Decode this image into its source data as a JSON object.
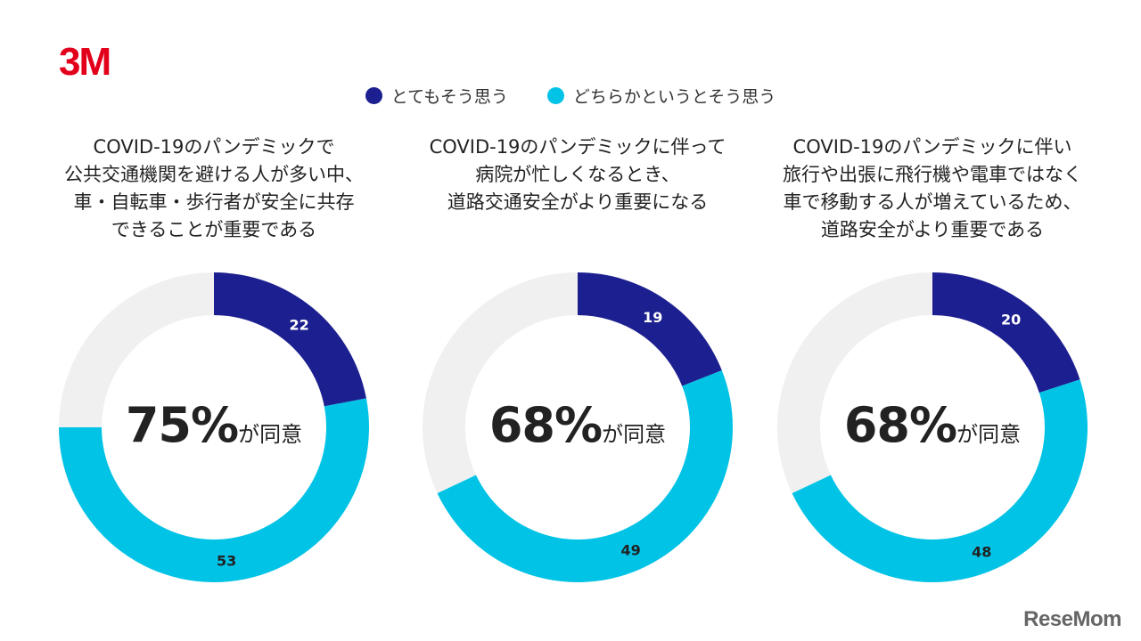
{
  "brand": {
    "logo_text": "3M",
    "logo_color": "#e3001b",
    "watermark": "ReseMom"
  },
  "colors": {
    "strongly_agree": "#1c1f8f",
    "somewhat_agree": "#00c3e6",
    "remainder": "#f0f0f0"
  },
  "legend": {
    "strongly_agree": "とてもそう思う",
    "somewhat_agree": "どちらかというとそう思う"
  },
  "chart_data": [
    {
      "type": "pie",
      "title_lines": [
        "COVID-19のパンデミックで",
        "公共交通機関を避ける人が多い中、",
        "車・自転車・歩行者が安全に共存",
        "できることが重要である"
      ],
      "series": [
        {
          "name": "とてもそう思う",
          "value": 22
        },
        {
          "name": "どちらかというとそう思う",
          "value": 53
        }
      ],
      "total_pct": "75%",
      "total_suffix": "が同意"
    },
    {
      "type": "pie",
      "title_lines": [
        "COVID-19のパンデミックに伴って",
        "病院が忙しくなるとき、",
        "道路交通安全がより重要になる"
      ],
      "series": [
        {
          "name": "とてもそう思う",
          "value": 19
        },
        {
          "name": "どちらかというとそう思う",
          "value": 49
        }
      ],
      "total_pct": "68%",
      "total_suffix": "が同意"
    },
    {
      "type": "pie",
      "title_lines": [
        "COVID-19のパンデミックに伴い",
        "旅行や出張に飛行機や電車ではなく",
        "車で移動する人が増えているため、",
        "道路安全がより重要である"
      ],
      "series": [
        {
          "name": "とてもそう思う",
          "value": 20
        },
        {
          "name": "どちらかというとそう思う",
          "value": 48
        }
      ],
      "total_pct": "68%",
      "total_suffix": "が同意"
    }
  ]
}
